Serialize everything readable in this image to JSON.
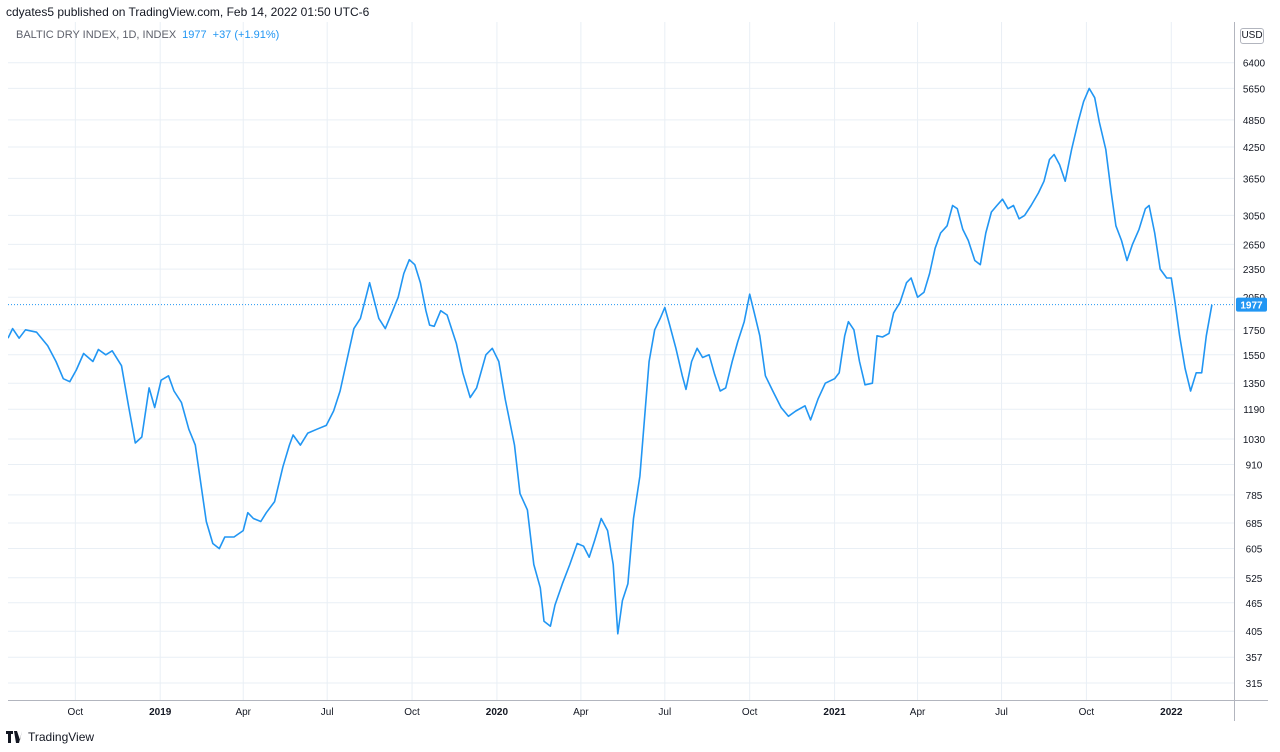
{
  "header": {
    "attribution": "cdyates5 published on TradingView.com, Feb 14, 2022 01:50 UTC-6"
  },
  "legend": {
    "symbol": "BALTIC DRY INDEX, 1D, INDEX",
    "last": "1977",
    "change": "+37 (+1.91%)"
  },
  "axis": {
    "currency": "USD"
  },
  "footer": {
    "brand": "TradingView"
  },
  "colors": {
    "line": "#2196f3",
    "grid": "#e9eff5",
    "price_tag": "#2196f3"
  },
  "chart_data": {
    "type": "line",
    "scale": "log",
    "title": "BALTIC DRY INDEX, 1D, INDEX",
    "ylim": [
      290,
      7800
    ],
    "y_ticks": [
      6400,
      5650,
      4850,
      4250,
      3650,
      3050,
      2650,
      2350,
      2050,
      1750,
      1550,
      1350,
      1190,
      1030,
      910,
      785,
      685,
      605,
      525,
      465,
      405,
      357,
      315
    ],
    "x_ticks": [
      {
        "date": "2018-10-01",
        "label": "Oct"
      },
      {
        "date": "2019-01-01",
        "label": "2019"
      },
      {
        "date": "2019-04-01",
        "label": "Apr"
      },
      {
        "date": "2019-07-01",
        "label": "Jul"
      },
      {
        "date": "2019-10-01",
        "label": "Oct"
      },
      {
        "date": "2020-01-01",
        "label": "2020"
      },
      {
        "date": "2020-04-01",
        "label": "Apr"
      },
      {
        "date": "2020-07-01",
        "label": "Jul"
      },
      {
        "date": "2020-10-01",
        "label": "Oct"
      },
      {
        "date": "2021-01-01",
        "label": "2021"
      },
      {
        "date": "2021-04-01",
        "label": "Apr"
      },
      {
        "date": "2021-07-01",
        "label": "Jul"
      },
      {
        "date": "2021-10-01",
        "label": "Oct"
      },
      {
        "date": "2022-01-01",
        "label": "2022"
      }
    ],
    "xlim": [
      "2018-07-20",
      "2022-03-10"
    ],
    "last_price": 1977,
    "series": [
      {
        "values": [
          [
            "2018-07-20",
            1680
          ],
          [
            "2018-07-25",
            1760
          ],
          [
            "2018-08-01",
            1680
          ],
          [
            "2018-08-08",
            1750
          ],
          [
            "2018-08-20",
            1730
          ],
          [
            "2018-09-01",
            1620
          ],
          [
            "2018-09-10",
            1500
          ],
          [
            "2018-09-18",
            1380
          ],
          [
            "2018-09-25",
            1360
          ],
          [
            "2018-10-02",
            1440
          ],
          [
            "2018-10-10",
            1560
          ],
          [
            "2018-10-20",
            1500
          ],
          [
            "2018-10-26",
            1590
          ],
          [
            "2018-11-03",
            1550
          ],
          [
            "2018-11-10",
            1580
          ],
          [
            "2018-11-20",
            1470
          ],
          [
            "2018-11-28",
            1200
          ],
          [
            "2018-12-05",
            1010
          ],
          [
            "2018-12-12",
            1040
          ],
          [
            "2018-12-20",
            1320
          ],
          [
            "2018-12-26",
            1200
          ],
          [
            "2019-01-02",
            1370
          ],
          [
            "2019-01-10",
            1400
          ],
          [
            "2019-01-16",
            1300
          ],
          [
            "2019-01-24",
            1230
          ],
          [
            "2019-02-01",
            1080
          ],
          [
            "2019-02-08",
            1000
          ],
          [
            "2019-02-20",
            690
          ],
          [
            "2019-02-27",
            620
          ],
          [
            "2019-03-06",
            605
          ],
          [
            "2019-03-12",
            640
          ],
          [
            "2019-03-22",
            640
          ],
          [
            "2019-04-01",
            660
          ],
          [
            "2019-04-06",
            720
          ],
          [
            "2019-04-12",
            700
          ],
          [
            "2019-04-20",
            690
          ],
          [
            "2019-04-26",
            720
          ],
          [
            "2019-05-05",
            760
          ],
          [
            "2019-05-14",
            900
          ],
          [
            "2019-05-21",
            1000
          ],
          [
            "2019-05-25",
            1050
          ],
          [
            "2019-06-02",
            1000
          ],
          [
            "2019-06-10",
            1060
          ],
          [
            "2019-06-20",
            1080
          ],
          [
            "2019-06-30",
            1100
          ],
          [
            "2019-07-08",
            1180
          ],
          [
            "2019-07-15",
            1300
          ],
          [
            "2019-07-22",
            1500
          ],
          [
            "2019-07-30",
            1760
          ],
          [
            "2019-08-06",
            1850
          ],
          [
            "2019-08-12",
            2050
          ],
          [
            "2019-08-16",
            2200
          ],
          [
            "2019-08-20",
            2050
          ],
          [
            "2019-08-26",
            1850
          ],
          [
            "2019-09-02",
            1760
          ],
          [
            "2019-09-09",
            1900
          ],
          [
            "2019-09-16",
            2050
          ],
          [
            "2019-09-22",
            2300
          ],
          [
            "2019-09-28",
            2460
          ],
          [
            "2019-10-04",
            2400
          ],
          [
            "2019-10-10",
            2200
          ],
          [
            "2019-10-16",
            1920
          ],
          [
            "2019-10-20",
            1790
          ],
          [
            "2019-10-25",
            1780
          ],
          [
            "2019-11-01",
            1920
          ],
          [
            "2019-11-08",
            1880
          ],
          [
            "2019-11-18",
            1640
          ],
          [
            "2019-11-25",
            1420
          ],
          [
            "2019-12-03",
            1260
          ],
          [
            "2019-12-10",
            1320
          ],
          [
            "2019-12-20",
            1550
          ],
          [
            "2019-12-27",
            1600
          ],
          [
            "2020-01-03",
            1500
          ],
          [
            "2020-01-10",
            1250
          ],
          [
            "2020-01-20",
            1000
          ],
          [
            "2020-01-26",
            790
          ],
          [
            "2020-02-03",
            730
          ],
          [
            "2020-02-10",
            560
          ],
          [
            "2020-02-17",
            500
          ],
          [
            "2020-02-21",
            425
          ],
          [
            "2020-02-28",
            415
          ],
          [
            "2020-03-04",
            460
          ],
          [
            "2020-03-12",
            510
          ],
          [
            "2020-03-20",
            560
          ],
          [
            "2020-03-28",
            620
          ],
          [
            "2020-04-04",
            612
          ],
          [
            "2020-04-10",
            580
          ],
          [
            "2020-04-16",
            630
          ],
          [
            "2020-04-23",
            700
          ],
          [
            "2020-04-30",
            660
          ],
          [
            "2020-05-06",
            560
          ],
          [
            "2020-05-11",
            400
          ],
          [
            "2020-05-16",
            470
          ],
          [
            "2020-05-22",
            510
          ],
          [
            "2020-05-28",
            700
          ],
          [
            "2020-06-04",
            860
          ],
          [
            "2020-06-10",
            1200
          ],
          [
            "2020-06-14",
            1500
          ],
          [
            "2020-06-20",
            1750
          ],
          [
            "2020-06-26",
            1850
          ],
          [
            "2020-07-01",
            1950
          ],
          [
            "2020-07-06",
            1800
          ],
          [
            "2020-07-13",
            1600
          ],
          [
            "2020-07-20",
            1400
          ],
          [
            "2020-07-24",
            1310
          ],
          [
            "2020-07-30",
            1500
          ],
          [
            "2020-08-05",
            1600
          ],
          [
            "2020-08-11",
            1530
          ],
          [
            "2020-08-18",
            1550
          ],
          [
            "2020-08-24",
            1410
          ],
          [
            "2020-08-30",
            1300
          ],
          [
            "2020-09-05",
            1320
          ],
          [
            "2020-09-12",
            1500
          ],
          [
            "2020-09-18",
            1650
          ],
          [
            "2020-09-25",
            1820
          ],
          [
            "2020-10-01",
            2080
          ],
          [
            "2020-10-06",
            1900
          ],
          [
            "2020-10-12",
            1700
          ],
          [
            "2020-10-18",
            1400
          ],
          [
            "2020-10-26",
            1300
          ],
          [
            "2020-11-04",
            1200
          ],
          [
            "2020-11-12",
            1150
          ],
          [
            "2020-11-20",
            1180
          ],
          [
            "2020-11-30",
            1210
          ],
          [
            "2020-12-06",
            1130
          ],
          [
            "2020-12-14",
            1250
          ],
          [
            "2020-12-22",
            1350
          ],
          [
            "2021-01-01",
            1380
          ],
          [
            "2021-01-06",
            1420
          ],
          [
            "2021-01-12",
            1700
          ],
          [
            "2021-01-16",
            1820
          ],
          [
            "2021-01-22",
            1750
          ],
          [
            "2021-01-28",
            1500
          ],
          [
            "2021-02-03",
            1340
          ],
          [
            "2021-02-11",
            1350
          ],
          [
            "2021-02-16",
            1700
          ],
          [
            "2021-02-22",
            1690
          ],
          [
            "2021-03-01",
            1720
          ],
          [
            "2021-03-06",
            1900
          ],
          [
            "2021-03-13",
            2000
          ],
          [
            "2021-03-20",
            2200
          ],
          [
            "2021-03-25",
            2250
          ],
          [
            "2021-04-01",
            2050
          ],
          [
            "2021-04-08",
            2100
          ],
          [
            "2021-04-14",
            2300
          ],
          [
            "2021-04-20",
            2600
          ],
          [
            "2021-04-26",
            2800
          ],
          [
            "2021-05-03",
            2900
          ],
          [
            "2021-05-09",
            3200
          ],
          [
            "2021-05-14",
            3150
          ],
          [
            "2021-05-20",
            2850
          ],
          [
            "2021-05-26",
            2700
          ],
          [
            "2021-06-02",
            2450
          ],
          [
            "2021-06-08",
            2400
          ],
          [
            "2021-06-14",
            2800
          ],
          [
            "2021-06-20",
            3100
          ],
          [
            "2021-06-26",
            3200
          ],
          [
            "2021-07-02",
            3300
          ],
          [
            "2021-07-08",
            3150
          ],
          [
            "2021-07-14",
            3200
          ],
          [
            "2021-07-20",
            3000
          ],
          [
            "2021-07-26",
            3050
          ],
          [
            "2021-08-02",
            3200
          ],
          [
            "2021-08-10",
            3400
          ],
          [
            "2021-08-16",
            3600
          ],
          [
            "2021-08-22",
            4000
          ],
          [
            "2021-08-27",
            4100
          ],
          [
            "2021-09-02",
            3900
          ],
          [
            "2021-09-08",
            3600
          ],
          [
            "2021-09-15",
            4200
          ],
          [
            "2021-09-22",
            4800
          ],
          [
            "2021-09-28",
            5300
          ],
          [
            "2021-10-04",
            5650
          ],
          [
            "2021-10-10",
            5400
          ],
          [
            "2021-10-15",
            4800
          ],
          [
            "2021-10-22",
            4200
          ],
          [
            "2021-10-28",
            3400
          ],
          [
            "2021-11-02",
            2900
          ],
          [
            "2021-11-08",
            2700
          ],
          [
            "2021-11-14",
            2450
          ],
          [
            "2021-11-20",
            2650
          ],
          [
            "2021-11-27",
            2850
          ],
          [
            "2021-12-04",
            3150
          ],
          [
            "2021-12-08",
            3200
          ],
          [
            "2021-12-14",
            2800
          ],
          [
            "2021-12-20",
            2350
          ],
          [
            "2021-12-27",
            2250
          ],
          [
            "2022-01-01",
            2250
          ],
          [
            "2022-01-05",
            2000
          ],
          [
            "2022-01-10",
            1700
          ],
          [
            "2022-01-16",
            1450
          ],
          [
            "2022-01-22",
            1300
          ],
          [
            "2022-01-28",
            1420
          ],
          [
            "2022-02-03",
            1420
          ],
          [
            "2022-02-08",
            1700
          ],
          [
            "2022-02-14",
            1977
          ]
        ]
      }
    ]
  }
}
